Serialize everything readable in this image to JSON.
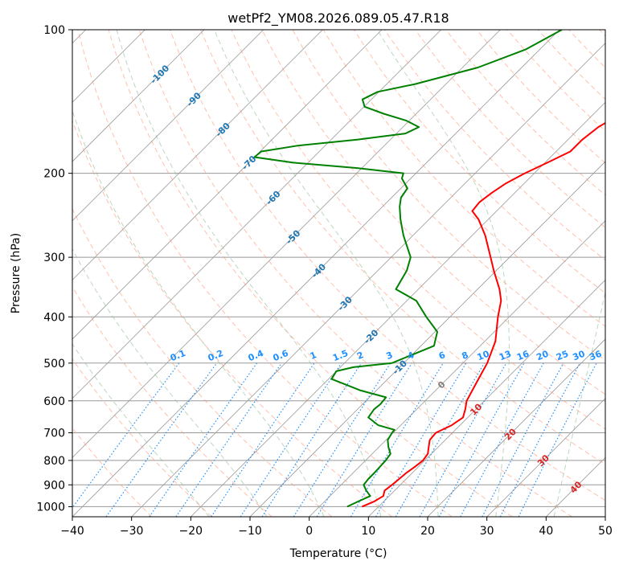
{
  "chart_data": {
    "type": "line",
    "title": "wetPf2_YM08.2026.089.05.47.R18",
    "xlabel": "Temperature (°C)",
    "ylabel": "Pressure (hPa)",
    "xlim": [
      -40,
      50
    ],
    "ylim": [
      1050,
      100
    ],
    "y_scale": "log",
    "grid": true,
    "x_ticks": [
      -40,
      -30,
      -20,
      -10,
      0,
      10,
      20,
      30,
      40,
      50
    ],
    "x_tick_labels": [
      "−40",
      "−30",
      "−20",
      "−10",
      "0",
      "10",
      "20",
      "30",
      "40",
      "50"
    ],
    "y_ticks": [
      100,
      200,
      300,
      400,
      500,
      600,
      700,
      800,
      900,
      1000
    ],
    "y_tick_labels": [
      "100",
      "200",
      "300",
      "400",
      "500",
      "600",
      "700",
      "800",
      "900",
      "1000"
    ],
    "skew": 45,
    "series": [
      {
        "color": "#ff0000",
        "points": [
          [
            1000,
            7.2
          ],
          [
            975,
            8.4
          ],
          [
            950,
            9.0
          ],
          [
            925,
            8.3
          ],
          [
            900,
            8.6
          ],
          [
            875,
            8.8
          ],
          [
            850,
            9.0
          ],
          [
            825,
            9.4
          ],
          [
            800,
            9.7
          ],
          [
            775,
            9.4
          ],
          [
            750,
            8.4
          ],
          [
            725,
            7.4
          ],
          [
            700,
            7.2
          ],
          [
            675,
            8.6
          ],
          [
            650,
            9.2
          ],
          [
            625,
            8.2
          ],
          [
            600,
            7.0
          ],
          [
            550,
            5.6
          ],
          [
            500,
            4.1
          ],
          [
            450,
            1.8
          ],
          [
            400,
            -1.9
          ],
          [
            370,
            -4.1
          ],
          [
            350,
            -6.3
          ],
          [
            320,
            -10.4
          ],
          [
            300,
            -13.2
          ],
          [
            270,
            -17.8
          ],
          [
            250,
            -21.6
          ],
          [
            240,
            -24.1
          ],
          [
            230,
            -24.4
          ],
          [
            220,
            -23.9
          ],
          [
            210,
            -23.1
          ],
          [
            200,
            -21.6
          ],
          [
            190,
            -19.6
          ],
          [
            180,
            -17.6
          ],
          [
            170,
            -17.6
          ],
          [
            160,
            -17.0
          ],
          [
            150,
            -15.4
          ],
          [
            140,
            -14.4
          ],
          [
            130,
            -15.4
          ],
          [
            120,
            -18.4
          ],
          [
            110,
            -20.6
          ],
          [
            100,
            -21.6
          ]
        ]
      },
      {
        "color": "#008000",
        "points": [
          [
            1000,
            4.7
          ],
          [
            975,
            5.7
          ],
          [
            950,
            6.8
          ],
          [
            925,
            5.2
          ],
          [
            900,
            3.8
          ],
          [
            875,
            3.6
          ],
          [
            850,
            3.6
          ],
          [
            800,
            3.4
          ],
          [
            775,
            3.1
          ],
          [
            750,
            1.6
          ],
          [
            725,
            0.3
          ],
          [
            700,
            -0.2
          ],
          [
            690,
            -0.3
          ],
          [
            675,
            -3.8
          ],
          [
            650,
            -6.8
          ],
          [
            625,
            -7.2
          ],
          [
            610,
            -7.0
          ],
          [
            590,
            -7.2
          ],
          [
            570,
            -12.8
          ],
          [
            540,
            -19.5
          ],
          [
            520,
            -20.0
          ],
          [
            510,
            -17.8
          ],
          [
            500,
            -12.0
          ],
          [
            460,
            -7.8
          ],
          [
            430,
            -9.6
          ],
          [
            400,
            -14.0
          ],
          [
            370,
            -18.4
          ],
          [
            350,
            -23.8
          ],
          [
            320,
            -25.1
          ],
          [
            300,
            -26.7
          ],
          [
            270,
            -31.6
          ],
          [
            250,
            -34.8
          ],
          [
            235,
            -37.1
          ],
          [
            225,
            -38.4
          ],
          [
            215,
            -38.9
          ],
          [
            205,
            -41.5
          ],
          [
            200,
            -42.1
          ],
          [
            195,
            -50.8
          ],
          [
            190,
            -62.5
          ],
          [
            185,
            -70.0
          ],
          [
            180,
            -69.8
          ],
          [
            175,
            -64.6
          ],
          [
            170,
            -55.6
          ],
          [
            165,
            -48.5
          ],
          [
            160,
            -47.3
          ],
          [
            155,
            -50.6
          ],
          [
            150,
            -55.5
          ],
          [
            145,
            -59.9
          ],
          [
            140,
            -61.5
          ],
          [
            135,
            -60.2
          ],
          [
            130,
            -55.2
          ],
          [
            120,
            -47.4
          ],
          [
            110,
            -42.4
          ],
          [
            100,
            -39.6
          ]
        ]
      }
    ],
    "dry_adiabats_C": [
      -30,
      -20,
      -10,
      0,
      10,
      20,
      30,
      40,
      50,
      60,
      70,
      80,
      90,
      100,
      110,
      120,
      130,
      140,
      150,
      160,
      170,
      180,
      190,
      200
    ],
    "moist_adiabats_C": [
      -20,
      -10,
      0,
      10,
      20,
      30,
      40,
      50
    ],
    "mixing_ratio_labels": [
      "0.1",
      "0.2",
      "0.4",
      "0.6",
      "1",
      "1.5",
      "2",
      "3",
      "4",
      "6",
      "8",
      "10",
      "13",
      "16",
      "20",
      "25",
      "30",
      "36"
    ],
    "mixing_ratio_values": [
      0.1,
      0.2,
      0.4,
      0.6,
      1,
      1.5,
      2,
      3,
      4,
      6,
      8,
      10,
      13,
      16,
      20,
      25,
      30,
      36
    ],
    "mixing_ratio_label_color": "#1e90ff",
    "isotherm_labels_blue": [
      {
        "label": "-100",
        "value": -100,
        "p": 124
      },
      {
        "label": "-90",
        "value": -90,
        "p": 140
      },
      {
        "label": "-80",
        "value": -80,
        "p": 162
      },
      {
        "label": "-70",
        "value": -70,
        "p": 190
      },
      {
        "label": "-60",
        "value": -60,
        "p": 225
      },
      {
        "label": "-50",
        "value": -50,
        "p": 272
      },
      {
        "label": "-40",
        "value": -40,
        "p": 320
      },
      {
        "label": "-30",
        "value": -30,
        "p": 375
      },
      {
        "label": "-20",
        "value": -20,
        "p": 440
      },
      {
        "label": "-10",
        "value": -10,
        "p": 510
      }
    ],
    "isotherm_labels_gray": [
      {
        "label": "0",
        "value": 0,
        "p": 555
      }
    ],
    "isotherm_labels_red": [
      {
        "label": "10",
        "value": 10,
        "p": 625
      },
      {
        "label": "20",
        "value": 20,
        "p": 705
      },
      {
        "label": "30",
        "value": 30,
        "p": 800
      },
      {
        "label": "40",
        "value": 40,
        "p": 910
      }
    ],
    "colors": {
      "temperature": "#ff0000",
      "dewpoint": "#008000",
      "isotherm_grid": "#999999",
      "dry_adiabat": "#ff8c69",
      "moist_adiabat": "#8fbc8f",
      "mixing_ratio": "#1e90ff",
      "isotherm_label_blue": "#1f77b4",
      "isotherm_label_gray": "#808080",
      "isotherm_label_red": "#d62728",
      "outer_arc": "#d2b48c"
    }
  }
}
